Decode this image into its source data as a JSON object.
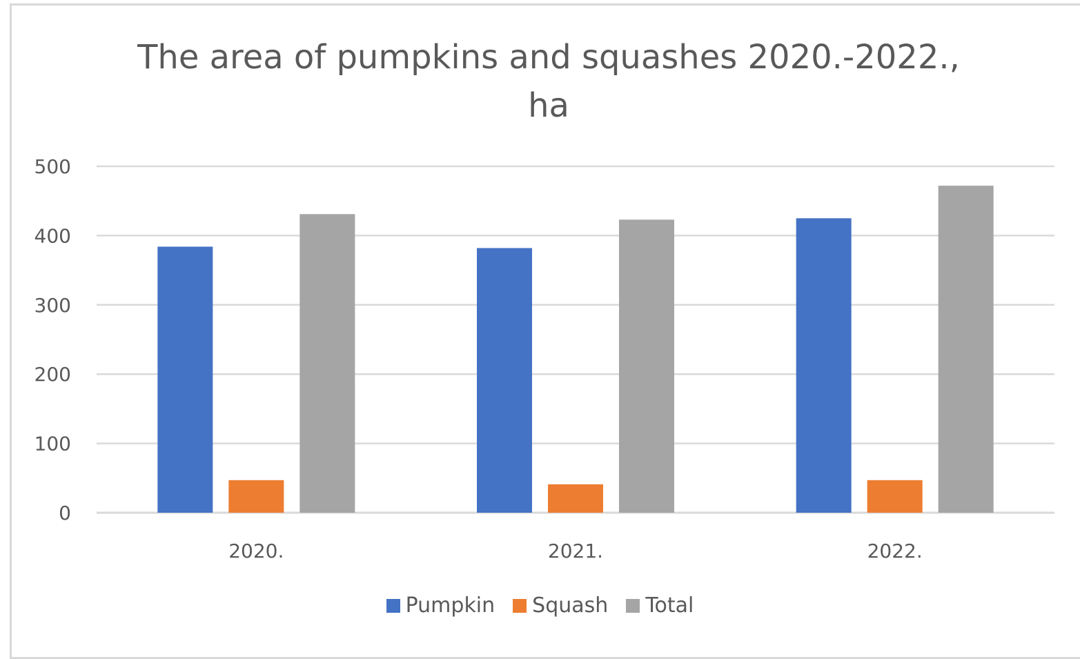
{
  "chart_data": {
    "type": "bar",
    "title": "The area of pumpkins and squashes 2020.-2022., ha",
    "title_lines": [
      "The area of pumpkins and squashes 2020.-2022.,",
      "ha"
    ],
    "categories": [
      "2020.",
      "2021.",
      "2022."
    ],
    "series": [
      {
        "name": "Pumpkin",
        "color": "#4472c4",
        "values": [
          384,
          382,
          425
        ]
      },
      {
        "name": "Squash",
        "color": "#ed7d31",
        "values": [
          47,
          41,
          47
        ]
      },
      {
        "name": "Total",
        "color": "#a5a5a5",
        "values": [
          431,
          423,
          472
        ]
      }
    ],
    "ylim": [
      0,
      500
    ],
    "yticks": [
      0,
      100,
      200,
      300,
      400,
      500
    ],
    "ytick_labels": [
      "0",
      "100",
      "200",
      "300",
      "400",
      "500"
    ],
    "grid": true,
    "legend_position": "bottom",
    "xlabel": "",
    "ylabel": ""
  }
}
